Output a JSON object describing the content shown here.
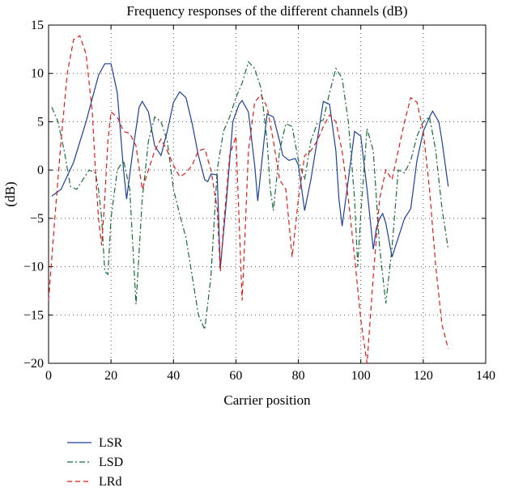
{
  "chart_data": {
    "type": "line",
    "title": "Frequency responses of the different channels (dB)",
    "xlabel": "Carrier position",
    "ylabel": "(dB)",
    "xlim": [
      0,
      140
    ],
    "ylim": [
      -20,
      15
    ],
    "xticks": [
      0,
      20,
      40,
      60,
      80,
      100,
      120,
      140
    ],
    "yticks": [
      -20,
      -15,
      -10,
      -5,
      0,
      5,
      10,
      15
    ],
    "xtick_labels": [
      "0",
      "20",
      "40",
      "60",
      "80",
      "100",
      "120",
      "140"
    ],
    "ytick_labels": [
      "−20",
      "−15",
      "−10",
      "−5",
      "0",
      "5",
      "10",
      "15"
    ],
    "grid": true,
    "legend_position": "below",
    "series": [
      {
        "name": "LSR",
        "color": "#1f3f99",
        "dash": "solid",
        "x": [
          1,
          4,
          8,
          12,
          16,
          18,
          20,
          22,
          24,
          25,
          27,
          29,
          30,
          32,
          34,
          36,
          38,
          40,
          42,
          44,
          46,
          48,
          50,
          51,
          52,
          54,
          55,
          57,
          59,
          61,
          62,
          64,
          66,
          67,
          69,
          70,
          72,
          74,
          75,
          77,
          79,
          80,
          82,
          84,
          86,
          88,
          90,
          92,
          93,
          94,
          96,
          98,
          100,
          102,
          104,
          105,
          106,
          107,
          108,
          110,
          112,
          114,
          116,
          118,
          120,
          122,
          123,
          125,
          126,
          128
        ],
        "y": [
          -2.7,
          -2,
          0.8,
          5,
          9.8,
          11,
          11,
          8,
          0,
          -3,
          2,
          6.5,
          7.1,
          6,
          2.5,
          1.5,
          4,
          7,
          8.1,
          7.5,
          4.8,
          1.5,
          -1,
          -1.2,
          -0.4,
          -0.5,
          -10.2,
          -3,
          5,
          6.8,
          7.2,
          6,
          0.5,
          -3.2,
          3,
          5.8,
          5.5,
          3,
          1.5,
          1,
          1.2,
          0.5,
          -4.2,
          -1,
          3,
          7.1,
          6.8,
          2,
          -3,
          -5.8,
          -1,
          4,
          3.5,
          -2,
          -8.2,
          -6,
          -5,
          -4.5,
          -5.5,
          -9,
          -7,
          -5,
          -4,
          1,
          4,
          5.5,
          6.1,
          5,
          3,
          -1.7
        ]
      },
      {
        "name": "LSD",
        "color": "#1a6b3c",
        "dash": "dashdot",
        "x": [
          1,
          3,
          5,
          7,
          9,
          11,
          13,
          15,
          16,
          17,
          18,
          19,
          20,
          22,
          24,
          26,
          28,
          30,
          32,
          34,
          36,
          38,
          40,
          42,
          44,
          46,
          48,
          50,
          52,
          54,
          56,
          58,
          60,
          62,
          64,
          66,
          68,
          70,
          71,
          72,
          73,
          74,
          76,
          78,
          80,
          82,
          84,
          86,
          88,
          90,
          92,
          94,
          96,
          98,
          99,
          100,
          102,
          104,
          106,
          108,
          110,
          112,
          114,
          116,
          118,
          120,
          122,
          124,
          126,
          128
        ],
        "y": [
          6.5,
          5,
          2,
          -1.7,
          -2,
          -1,
          0,
          -0.3,
          -2,
          -5,
          -10.5,
          -10.8,
          -5,
          0,
          1,
          -2,
          -13.9,
          -3,
          3,
          5.5,
          5,
          3,
          -2,
          -4.6,
          -7,
          -11,
          -15,
          -16.5,
          -11,
          0,
          4,
          5.5,
          7.5,
          9,
          11.2,
          10.5,
          8.5,
          3,
          -2,
          -4.2,
          -1,
          2,
          4.8,
          4.5,
          1,
          -1,
          3,
          4.8,
          5.2,
          8,
          10.5,
          9.5,
          5,
          -3,
          -10,
          -4.5,
          4.3,
          2,
          -8,
          -13.8,
          -8,
          0,
          -0.3,
          1,
          3.5,
          5,
          5.5,
          2,
          -4,
          -8.2
        ]
      },
      {
        "name": "LRd",
        "color": "#e01b1b",
        "dash": "dashed",
        "x": [
          0,
          2,
          4,
          6,
          8,
          10,
          12,
          14,
          15,
          16,
          17,
          18,
          19,
          20,
          22,
          24,
          26,
          28,
          30,
          32,
          34,
          36,
          38,
          40,
          42,
          44,
          46,
          48,
          50,
          52,
          54,
          55,
          56,
          58,
          60,
          62,
          63,
          64,
          66,
          68,
          70,
          72,
          74,
          76,
          78,
          80,
          82,
          84,
          86,
          88,
          90,
          92,
          94,
          96,
          98,
          100,
          102,
          104,
          106,
          108,
          110,
          112,
          114,
          116,
          118,
          120,
          122,
          124,
          126,
          128
        ],
        "y": [
          -13.5,
          -5,
          3,
          10,
          13.5,
          13.9,
          12,
          6,
          0,
          -5,
          -7.8,
          -3,
          3,
          6,
          5.5,
          4,
          3.8,
          2.5,
          -2,
          0,
          2,
          3.2,
          2,
          0.5,
          -0.7,
          -0.3,
          0.5,
          2,
          2.2,
          0,
          -4,
          -10.5,
          -6,
          1.5,
          3.5,
          -13.5,
          -6,
          2,
          7,
          7.8,
          6.5,
          3,
          -1,
          -2,
          -9,
          -3,
          1.5,
          2,
          3,
          4.5,
          5.7,
          5,
          2,
          -3,
          -9,
          -15.5,
          -20,
          -11,
          -3,
          0,
          -1,
          2,
          5,
          7.5,
          7,
          4,
          -2,
          -10,
          -16,
          -18.5
        ]
      }
    ]
  }
}
